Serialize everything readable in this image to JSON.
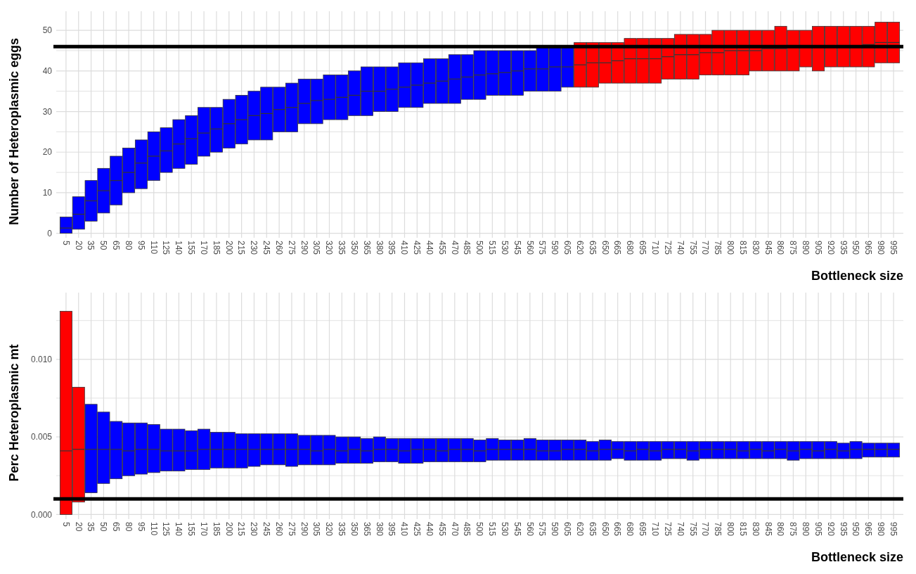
{
  "chart_data": [
    {
      "type": "box",
      "xlabel": "Bottleneck size",
      "ylabel": "Number of Heteroplasmic eggs",
      "grid": true,
      "categories": [
        "5",
        "20",
        "35",
        "50",
        "65",
        "80",
        "95",
        "110",
        "125",
        "140",
        "155",
        "170",
        "185",
        "200",
        "215",
        "230",
        "245",
        "260",
        "275",
        "290",
        "305",
        "320",
        "335",
        "350",
        "365",
        "380",
        "395",
        "410",
        "425",
        "440",
        "455",
        "470",
        "485",
        "500",
        "515",
        "530",
        "545",
        "560",
        "575",
        "590",
        "605",
        "620",
        "635",
        "650",
        "665",
        "680",
        "695",
        "710",
        "725",
        "740",
        "755",
        "770",
        "785",
        "800",
        "815",
        "830",
        "845",
        "860",
        "875",
        "890",
        "905",
        "920",
        "935",
        "950",
        "965",
        "980",
        "995"
      ],
      "ylim": [
        -1.1,
        54.7
      ],
      "yticks": [
        0,
        {
          "value": 5,
          "label": null
        },
        10,
        {
          "value": 15,
          "label": null
        },
        20,
        {
          "value": 25,
          "label": null
        },
        30,
        {
          "value": 35,
          "label": null
        },
        40,
        {
          "value": 45,
          "label": null
        },
        50
      ],
      "ref_lines": [
        {
          "axis": "y",
          "value": 46,
          "color": "#000000"
        }
      ],
      "colors": [
        "#0000ff",
        "#0000ff",
        "#0000ff",
        "#0000ff",
        "#0000ff",
        "#0000ff",
        "#0000ff",
        "#0000ff",
        "#0000ff",
        "#0000ff",
        "#0000ff",
        "#0000ff",
        "#0000ff",
        "#0000ff",
        "#0000ff",
        "#0000ff",
        "#0000ff",
        "#0000ff",
        "#0000ff",
        "#0000ff",
        "#0000ff",
        "#0000ff",
        "#0000ff",
        "#0000ff",
        "#0000ff",
        "#0000ff",
        "#0000ff",
        "#0000ff",
        "#0000ff",
        "#0000ff",
        "#0000ff",
        "#0000ff",
        "#0000ff",
        "#0000ff",
        "#0000ff",
        "#0000ff",
        "#0000ff",
        "#0000ff",
        "#0000ff",
        "#0000ff",
        "#0000ff",
        "#ff0000",
        "#ff0000",
        "#ff0000",
        "#ff0000",
        "#ff0000",
        "#ff0000",
        "#ff0000",
        "#ff0000",
        "#ff0000",
        "#ff0000",
        "#ff0000",
        "#ff0000",
        "#ff0000",
        "#ff0000",
        "#ff0000",
        "#ff0000",
        "#ff0000",
        "#ff0000",
        "#ff0000",
        "#ff0000",
        "#ff0000",
        "#ff0000",
        "#ff0000",
        "#ff0000",
        "#ff0000",
        "#ff0000"
      ],
      "boxes": [
        {
          "low": 0,
          "q1": 0,
          "median": 1.3,
          "q3": 4,
          "high": 4
        },
        {
          "low": 1,
          "q1": 1,
          "median": 4.7,
          "q3": 9,
          "high": 9
        },
        {
          "low": 3,
          "q1": 3,
          "median": 8,
          "q3": 13,
          "high": 13
        },
        {
          "low": 5,
          "q1": 5,
          "median": 10.5,
          "q3": 16,
          "high": 16
        },
        {
          "low": 7,
          "q1": 7,
          "median": 13,
          "q3": 19,
          "high": 19
        },
        {
          "low": 10,
          "q1": 10,
          "median": 15,
          "q3": 21,
          "high": 21
        },
        {
          "low": 11,
          "q1": 11,
          "median": 17.3,
          "q3": 23,
          "high": 23
        },
        {
          "low": 13,
          "q1": 13,
          "median": 19,
          "q3": 25,
          "high": 25
        },
        {
          "low": 15,
          "q1": 15,
          "median": 20.3,
          "q3": 26,
          "high": 26
        },
        {
          "low": 16,
          "q1": 16,
          "median": 22,
          "q3": 28,
          "high": 28
        },
        {
          "low": 17,
          "q1": 17,
          "median": 23.3,
          "q3": 29,
          "high": 29
        },
        {
          "low": 19,
          "q1": 19,
          "median": 24.7,
          "q3": 31,
          "high": 31
        },
        {
          "low": 20,
          "q1": 20,
          "median": 25.7,
          "q3": 31,
          "high": 31
        },
        {
          "low": 21,
          "q1": 21,
          "median": 27,
          "q3": 33,
          "high": 33
        },
        {
          "low": 22,
          "q1": 22,
          "median": 28,
          "q3": 34,
          "high": 34
        },
        {
          "low": 23,
          "q1": 23,
          "median": 29,
          "q3": 35,
          "high": 35
        },
        {
          "low": 23,
          "q1": 23,
          "median": 29.5,
          "q3": 36,
          "high": 36
        },
        {
          "low": 25,
          "q1": 25,
          "median": 30.5,
          "q3": 36,
          "high": 36
        },
        {
          "low": 25,
          "q1": 25,
          "median": 31,
          "q3": 37,
          "high": 37
        },
        {
          "low": 27,
          "q1": 27,
          "median": 32,
          "q3": 38,
          "high": 38
        },
        {
          "low": 27,
          "q1": 27,
          "median": 32.7,
          "q3": 38,
          "high": 38
        },
        {
          "low": 28,
          "q1": 28,
          "median": 33,
          "q3": 39,
          "high": 39
        },
        {
          "low": 28,
          "q1": 28,
          "median": 33.5,
          "q3": 39,
          "high": 39
        },
        {
          "low": 29,
          "q1": 29,
          "median": 34,
          "q3": 40,
          "high": 40
        },
        {
          "low": 29,
          "q1": 29,
          "median": 35,
          "q3": 41,
          "high": 41
        },
        {
          "low": 30,
          "q1": 30,
          "median": 35,
          "q3": 41,
          "high": 41
        },
        {
          "low": 30,
          "q1": 30,
          "median": 35.5,
          "q3": 41,
          "high": 41
        },
        {
          "low": 31,
          "q1": 31,
          "median": 36,
          "q3": 42,
          "high": 42
        },
        {
          "low": 31,
          "q1": 31,
          "median": 36.5,
          "q3": 42,
          "high": 42
        },
        {
          "low": 32,
          "q1": 32,
          "median": 37,
          "q3": 43,
          "high": 43
        },
        {
          "low": 32,
          "q1": 32,
          "median": 37.5,
          "q3": 43,
          "high": 43
        },
        {
          "low": 32,
          "q1": 32,
          "median": 38,
          "q3": 44,
          "high": 44
        },
        {
          "low": 33,
          "q1": 33,
          "median": 38.5,
          "q3": 44,
          "high": 44
        },
        {
          "low": 33,
          "q1": 33,
          "median": 39,
          "q3": 45,
          "high": 45
        },
        {
          "low": 34,
          "q1": 34,
          "median": 39.3,
          "q3": 45,
          "high": 45
        },
        {
          "low": 34,
          "q1": 34,
          "median": 39.6,
          "q3": 45,
          "high": 45
        },
        {
          "low": 34,
          "q1": 34,
          "median": 40,
          "q3": 45,
          "high": 45
        },
        {
          "low": 35,
          "q1": 35,
          "median": 40.5,
          "q3": 45,
          "high": 45
        },
        {
          "low": 35,
          "q1": 35,
          "median": 40.5,
          "q3": 46,
          "high": 46
        },
        {
          "low": 35,
          "q1": 35,
          "median": 41,
          "q3": 46,
          "high": 46
        },
        {
          "low": 36,
          "q1": 36,
          "median": 41,
          "q3": 46,
          "high": 46
        },
        {
          "low": 36,
          "q1": 36,
          "median": 41.5,
          "q3": 47,
          "high": 47
        },
        {
          "low": 36,
          "q1": 36,
          "median": 42,
          "q3": 47,
          "high": 47
        },
        {
          "low": 37,
          "q1": 37,
          "median": 42,
          "q3": 47,
          "high": 47
        },
        {
          "low": 37,
          "q1": 37,
          "median": 42.5,
          "q3": 47,
          "high": 47
        },
        {
          "low": 37,
          "q1": 37,
          "median": 43,
          "q3": 48,
          "high": 48
        },
        {
          "low": 37,
          "q1": 37,
          "median": 43,
          "q3": 48,
          "high": 48
        },
        {
          "low": 37,
          "q1": 37,
          "median": 43,
          "q3": 48,
          "high": 48
        },
        {
          "low": 38,
          "q1": 38,
          "median": 43.5,
          "q3": 48,
          "high": 48
        },
        {
          "low": 38,
          "q1": 38,
          "median": 44,
          "q3": 49,
          "high": 49
        },
        {
          "low": 38,
          "q1": 38,
          "median": 44,
          "q3": 49,
          "high": 49
        },
        {
          "low": 39,
          "q1": 39,
          "median": 44.5,
          "q3": 49,
          "high": 49
        },
        {
          "low": 39,
          "q1": 39,
          "median": 44.5,
          "q3": 50,
          "high": 50
        },
        {
          "low": 39,
          "q1": 39,
          "median": 45,
          "q3": 50,
          "high": 50
        },
        {
          "low": 39,
          "q1": 39,
          "median": 45,
          "q3": 50,
          "high": 50
        },
        {
          "low": 40,
          "q1": 40,
          "median": 45,
          "q3": 50,
          "high": 50
        },
        {
          "low": 40,
          "q1": 40,
          "median": 45.5,
          "q3": 50,
          "high": 50
        },
        {
          "low": 40,
          "q1": 40,
          "median": 45.5,
          "q3": 51,
          "high": 51
        },
        {
          "low": 40,
          "q1": 40,
          "median": 46,
          "q3": 50,
          "high": 50
        },
        {
          "low": 41,
          "q1": 41,
          "median": 46,
          "q3": 50,
          "high": 50
        },
        {
          "low": 40,
          "q1": 40,
          "median": 46,
          "q3": 51,
          "high": 51
        },
        {
          "low": 41,
          "q1": 41,
          "median": 46,
          "q3": 51,
          "high": 51
        },
        {
          "low": 41,
          "q1": 41,
          "median": 46,
          "q3": 51,
          "high": 51
        },
        {
          "low": 41,
          "q1": 41,
          "median": 46,
          "q3": 51,
          "high": 51
        },
        {
          "low": 41,
          "q1": 41,
          "median": 46.5,
          "q3": 51,
          "high": 51
        },
        {
          "low": 42,
          "q1": 42,
          "median": 47,
          "q3": 52,
          "high": 52
        },
        {
          "low": 42,
          "q1": 42,
          "median": 47,
          "q3": 52,
          "high": 52
        }
      ]
    },
    {
      "type": "box",
      "xlabel": "Bottleneck size",
      "ylabel": "Perc Heteroplasmic mt",
      "grid": true,
      "categories": [
        "5",
        "20",
        "35",
        "50",
        "65",
        "80",
        "95",
        "110",
        "125",
        "140",
        "155",
        "170",
        "185",
        "200",
        "215",
        "230",
        "245",
        "260",
        "275",
        "290",
        "305",
        "320",
        "335",
        "350",
        "365",
        "380",
        "395",
        "410",
        "425",
        "440",
        "455",
        "470",
        "485",
        "500",
        "515",
        "530",
        "545",
        "560",
        "575",
        "590",
        "605",
        "620",
        "635",
        "650",
        "665",
        "680",
        "695",
        "710",
        "725",
        "740",
        "755",
        "770",
        "785",
        "800",
        "815",
        "830",
        "845",
        "860",
        "875",
        "890",
        "905",
        "920",
        "935",
        "950",
        "965",
        "980",
        "995"
      ],
      "ylim": [
        -0.0003,
        0.0143
      ],
      "yticks": [
        {
          "value": 0,
          "label": "0.000"
        },
        {
          "value": 0.0025,
          "label": null
        },
        {
          "value": 0.005,
          "label": "0.005"
        },
        {
          "value": 0.0075,
          "label": null
        },
        {
          "value": 0.01,
          "label": "0.010"
        },
        {
          "value": 0.0125,
          "label": null
        }
      ],
      "ref_lines": [
        {
          "axis": "y",
          "value": 0.001,
          "color": "#000000"
        }
      ],
      "colors": [
        "#ff0000",
        "#ff0000",
        "#0000ff",
        "#0000ff",
        "#0000ff",
        "#0000ff",
        "#0000ff",
        "#0000ff",
        "#0000ff",
        "#0000ff",
        "#0000ff",
        "#0000ff",
        "#0000ff",
        "#0000ff",
        "#0000ff",
        "#0000ff",
        "#0000ff",
        "#0000ff",
        "#0000ff",
        "#0000ff",
        "#0000ff",
        "#0000ff",
        "#0000ff",
        "#0000ff",
        "#0000ff",
        "#0000ff",
        "#0000ff",
        "#0000ff",
        "#0000ff",
        "#0000ff",
        "#0000ff",
        "#0000ff",
        "#0000ff",
        "#0000ff",
        "#0000ff",
        "#0000ff",
        "#0000ff",
        "#0000ff",
        "#0000ff",
        "#0000ff",
        "#0000ff",
        "#0000ff",
        "#0000ff",
        "#0000ff",
        "#0000ff",
        "#0000ff",
        "#0000ff",
        "#0000ff",
        "#0000ff",
        "#0000ff",
        "#0000ff",
        "#0000ff",
        "#0000ff",
        "#0000ff",
        "#0000ff",
        "#0000ff",
        "#0000ff",
        "#0000ff",
        "#0000ff",
        "#0000ff",
        "#0000ff",
        "#0000ff",
        "#0000ff",
        "#0000ff",
        "#0000ff",
        "#0000ff",
        "#0000ff"
      ],
      "boxes": [
        {
          "low": 0,
          "q1": 0,
          "median": 0.0041,
          "q3": 0.0131,
          "high": 0.0131
        },
        {
          "low": 0.0008,
          "q1": 0.0008,
          "median": 0.0042,
          "q3": 0.0082,
          "high": 0.0082
        },
        {
          "low": 0.0014,
          "q1": 0.0014,
          "median": 0.0042,
          "q3": 0.0071,
          "high": 0.0071
        },
        {
          "low": 0.002,
          "q1": 0.002,
          "median": 0.0042,
          "q3": 0.0066,
          "high": 0.0066
        },
        {
          "low": 0.0023,
          "q1": 0.0023,
          "median": 0.0042,
          "q3": 0.006,
          "high": 0.006
        },
        {
          "low": 0.0025,
          "q1": 0.0025,
          "median": 0.0041,
          "q3": 0.0059,
          "high": 0.0059
        },
        {
          "low": 0.0026,
          "q1": 0.0026,
          "median": 0.0042,
          "q3": 0.0059,
          "high": 0.0059
        },
        {
          "low": 0.0027,
          "q1": 0.0027,
          "median": 0.0042,
          "q3": 0.0058,
          "high": 0.0058
        },
        {
          "low": 0.0028,
          "q1": 0.0028,
          "median": 0.0041,
          "q3": 0.0055,
          "high": 0.0055
        },
        {
          "low": 0.0028,
          "q1": 0.0028,
          "median": 0.0041,
          "q3": 0.0055,
          "high": 0.0055
        },
        {
          "low": 0.0029,
          "q1": 0.0029,
          "median": 0.0041,
          "q3": 0.0054,
          "high": 0.0054
        },
        {
          "low": 0.0029,
          "q1": 0.0029,
          "median": 0.0042,
          "q3": 0.0055,
          "high": 0.0055
        },
        {
          "low": 0.003,
          "q1": 0.003,
          "median": 0.0042,
          "q3": 0.0053,
          "high": 0.0053
        },
        {
          "low": 0.003,
          "q1": 0.003,
          "median": 0.0042,
          "q3": 0.0053,
          "high": 0.0053
        },
        {
          "low": 0.003,
          "q1": 0.003,
          "median": 0.0042,
          "q3": 0.0052,
          "high": 0.0052
        },
        {
          "low": 0.0031,
          "q1": 0.0031,
          "median": 0.0042,
          "q3": 0.0052,
          "high": 0.0052
        },
        {
          "low": 0.0032,
          "q1": 0.0032,
          "median": 0.0042,
          "q3": 0.0052,
          "high": 0.0052
        },
        {
          "low": 0.0032,
          "q1": 0.0032,
          "median": 0.0042,
          "q3": 0.0052,
          "high": 0.0052
        },
        {
          "low": 0.0031,
          "q1": 0.0031,
          "median": 0.0042,
          "q3": 0.0052,
          "high": 0.0052
        },
        {
          "low": 0.0032,
          "q1": 0.0032,
          "median": 0.0042,
          "q3": 0.0051,
          "high": 0.0051
        },
        {
          "low": 0.0032,
          "q1": 0.0032,
          "median": 0.0041,
          "q3": 0.0051,
          "high": 0.0051
        },
        {
          "low": 0.0032,
          "q1": 0.0032,
          "median": 0.0042,
          "q3": 0.0051,
          "high": 0.0051
        },
        {
          "low": 0.0033,
          "q1": 0.0033,
          "median": 0.0041,
          "q3": 0.005,
          "high": 0.005
        },
        {
          "low": 0.0033,
          "q1": 0.0033,
          "median": 0.0042,
          "q3": 0.005,
          "high": 0.005
        },
        {
          "low": 0.0033,
          "q1": 0.0033,
          "median": 0.0041,
          "q3": 0.0049,
          "high": 0.0049
        },
        {
          "low": 0.0034,
          "q1": 0.0034,
          "median": 0.0042,
          "q3": 0.005,
          "high": 0.005
        },
        {
          "low": 0.0034,
          "q1": 0.0034,
          "median": 0.0042,
          "q3": 0.0049,
          "high": 0.0049
        },
        {
          "low": 0.0033,
          "q1": 0.0033,
          "median": 0.0041,
          "q3": 0.0049,
          "high": 0.0049
        },
        {
          "low": 0.0033,
          "q1": 0.0033,
          "median": 0.0042,
          "q3": 0.0049,
          "high": 0.0049
        },
        {
          "low": 0.0034,
          "q1": 0.0034,
          "median": 0.0042,
          "q3": 0.0049,
          "high": 0.0049
        },
        {
          "low": 0.0034,
          "q1": 0.0034,
          "median": 0.0041,
          "q3": 0.0049,
          "high": 0.0049
        },
        {
          "low": 0.0034,
          "q1": 0.0034,
          "median": 0.0042,
          "q3": 0.0049,
          "high": 0.0049
        },
        {
          "low": 0.0034,
          "q1": 0.0034,
          "median": 0.0042,
          "q3": 0.0049,
          "high": 0.0049
        },
        {
          "low": 0.0034,
          "q1": 0.0034,
          "median": 0.0041,
          "q3": 0.0048,
          "high": 0.0048
        },
        {
          "low": 0.0035,
          "q1": 0.0035,
          "median": 0.0042,
          "q3": 0.0049,
          "high": 0.0049
        },
        {
          "low": 0.0035,
          "q1": 0.0035,
          "median": 0.0042,
          "q3": 0.0048,
          "high": 0.0048
        },
        {
          "low": 0.0035,
          "q1": 0.0035,
          "median": 0.0042,
          "q3": 0.0048,
          "high": 0.0048
        },
        {
          "low": 0.0035,
          "q1": 0.0035,
          "median": 0.0042,
          "q3": 0.0049,
          "high": 0.0049
        },
        {
          "low": 0.0035,
          "q1": 0.0035,
          "median": 0.0041,
          "q3": 0.0048,
          "high": 0.0048
        },
        {
          "low": 0.0035,
          "q1": 0.0035,
          "median": 0.0041,
          "q3": 0.0048,
          "high": 0.0048
        },
        {
          "low": 0.0035,
          "q1": 0.0035,
          "median": 0.0042,
          "q3": 0.0048,
          "high": 0.0048
        },
        {
          "low": 0.0035,
          "q1": 0.0035,
          "median": 0.0042,
          "q3": 0.0048,
          "high": 0.0048
        },
        {
          "low": 0.0035,
          "q1": 0.0035,
          "median": 0.0041,
          "q3": 0.0047,
          "high": 0.0047
        },
        {
          "low": 0.0035,
          "q1": 0.0035,
          "median": 0.0042,
          "q3": 0.0048,
          "high": 0.0048
        },
        {
          "low": 0.0036,
          "q1": 0.0036,
          "median": 0.0042,
          "q3": 0.0047,
          "high": 0.0047
        },
        {
          "low": 0.0035,
          "q1": 0.0035,
          "median": 0.0041,
          "q3": 0.0047,
          "high": 0.0047
        },
        {
          "low": 0.0035,
          "q1": 0.0035,
          "median": 0.0042,
          "q3": 0.0047,
          "high": 0.0047
        },
        {
          "low": 0.0035,
          "q1": 0.0035,
          "median": 0.0041,
          "q3": 0.0047,
          "high": 0.0047
        },
        {
          "low": 0.0036,
          "q1": 0.0036,
          "median": 0.0042,
          "q3": 0.0047,
          "high": 0.0047
        },
        {
          "low": 0.0036,
          "q1": 0.0036,
          "median": 0.0042,
          "q3": 0.0047,
          "high": 0.0047
        },
        {
          "low": 0.0035,
          "q1": 0.0035,
          "median": 0.0041,
          "q3": 0.0047,
          "high": 0.0047
        },
        {
          "low": 0.0036,
          "q1": 0.0036,
          "median": 0.0042,
          "q3": 0.0047,
          "high": 0.0047
        },
        {
          "low": 0.0036,
          "q1": 0.0036,
          "median": 0.0042,
          "q3": 0.0047,
          "high": 0.0047
        },
        {
          "low": 0.0036,
          "q1": 0.0036,
          "median": 0.0042,
          "q3": 0.0047,
          "high": 0.0047
        },
        {
          "low": 0.0036,
          "q1": 0.0036,
          "median": 0.0041,
          "q3": 0.0047,
          "high": 0.0047
        },
        {
          "low": 0.0036,
          "q1": 0.0036,
          "median": 0.0042,
          "q3": 0.0047,
          "high": 0.0047
        },
        {
          "low": 0.0036,
          "q1": 0.0036,
          "median": 0.0041,
          "q3": 0.0047,
          "high": 0.0047
        },
        {
          "low": 0.0036,
          "q1": 0.0036,
          "median": 0.0042,
          "q3": 0.0047,
          "high": 0.0047
        },
        {
          "low": 0.0035,
          "q1": 0.0035,
          "median": 0.0041,
          "q3": 0.0047,
          "high": 0.0047
        },
        {
          "low": 0.0036,
          "q1": 0.0036,
          "median": 0.0042,
          "q3": 0.0047,
          "high": 0.0047
        },
        {
          "low": 0.0036,
          "q1": 0.0036,
          "median": 0.0041,
          "q3": 0.0047,
          "high": 0.0047
        },
        {
          "low": 0.0036,
          "q1": 0.0036,
          "median": 0.0042,
          "q3": 0.0047,
          "high": 0.0047
        },
        {
          "low": 0.0036,
          "q1": 0.0036,
          "median": 0.0041,
          "q3": 0.0046,
          "high": 0.0046
        },
        {
          "low": 0.0036,
          "q1": 0.0036,
          "median": 0.0042,
          "q3": 0.0047,
          "high": 0.0047
        },
        {
          "low": 0.0037,
          "q1": 0.0037,
          "median": 0.0042,
          "q3": 0.0046,
          "high": 0.0046
        },
        {
          "low": 0.0037,
          "q1": 0.0037,
          "median": 0.0042,
          "q3": 0.0046,
          "high": 0.0046
        },
        {
          "low": 0.0037,
          "q1": 0.0037,
          "median": 0.0042,
          "q3": 0.0046,
          "high": 0.0046
        }
      ]
    }
  ]
}
